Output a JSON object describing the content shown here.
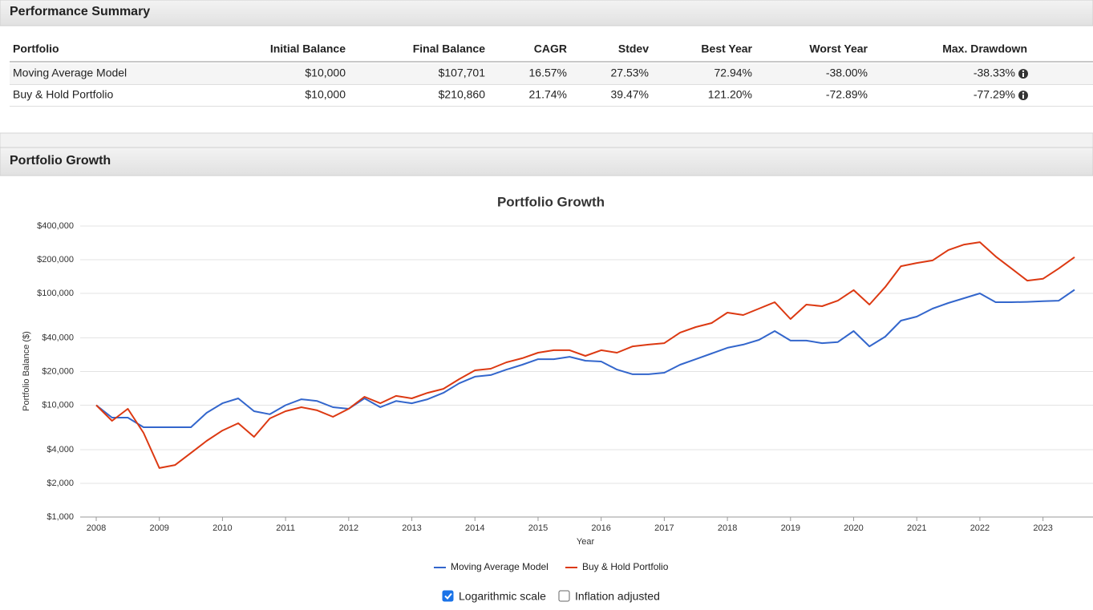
{
  "sections": {
    "summary": "Performance Summary",
    "growth": "Portfolio Growth"
  },
  "table": {
    "columns": [
      "Portfolio",
      "Initial Balance",
      "Final Balance",
      "CAGR",
      "Stdev",
      "Best Year",
      "Worst Year",
      "Max. Drawdown"
    ],
    "rows": [
      [
        "Moving Average Model",
        "$10,000",
        "$107,701",
        "16.57%",
        "27.53%",
        "72.94%",
        "-38.00%",
        "-38.33%"
      ],
      [
        "Buy & Hold Portfolio",
        "$10,000",
        "$210,860",
        "21.74%",
        "39.47%",
        "121.20%",
        "-72.89%",
        "-77.29%"
      ]
    ]
  },
  "chart_data": {
    "type": "line",
    "title": "Portfolio Growth",
    "x_label": "Year",
    "y_label": "Portfolio Balance ($)",
    "log_y": true,
    "grid": true,
    "legend": "bottom",
    "xlim": [
      2008,
      2023.5
    ],
    "xticks": [
      2008,
      2009,
      2010,
      2011,
      2012,
      2013,
      2014,
      2015,
      2016,
      2017,
      2018,
      2019,
      2020,
      2021,
      2022,
      2023
    ],
    "ylim": [
      1000,
      400000
    ],
    "yticks": [
      {
        "value": 1000,
        "label": "$1,000"
      },
      {
        "value": 2000,
        "label": "$2,000"
      },
      {
        "value": 4000,
        "label": "$4,000"
      },
      {
        "value": 10000,
        "label": "$10,000"
      },
      {
        "value": 20000,
        "label": "$20,000"
      },
      {
        "value": 40000,
        "label": "$40,000"
      },
      {
        "value": 100000,
        "label": "$100,000"
      },
      {
        "value": 200000,
        "label": "$200,000"
      },
      {
        "value": 400000,
        "label": "$400,000"
      }
    ],
    "x": [
      2008,
      2008.25,
      2008.5,
      2008.75,
      2009,
      2009.25,
      2009.5,
      2009.75,
      2010,
      2010.25,
      2010.5,
      2010.75,
      2011,
      2011.25,
      2011.5,
      2011.75,
      2012,
      2012.25,
      2012.5,
      2012.75,
      2013,
      2013.25,
      2013.5,
      2013.75,
      2014,
      2014.25,
      2014.5,
      2014.75,
      2015,
      2015.25,
      2015.5,
      2015.75,
      2016,
      2016.25,
      2016.5,
      2016.75,
      2017,
      2017.25,
      2017.5,
      2017.75,
      2018,
      2018.25,
      2018.5,
      2018.75,
      2019,
      2019.25,
      2019.5,
      2019.75,
      2020,
      2020.25,
      2020.5,
      2020.75,
      2021,
      2021.25,
      2021.5,
      2021.75,
      2022,
      2022.25,
      2022.5,
      2022.75,
      2023,
      2023.25,
      2023.5
    ],
    "series": [
      {
        "name": "Moving Average Model",
        "color": "#3366cc",
        "values": [
          10000,
          7740,
          7740,
          6350,
          6350,
          6350,
          6350,
          8550,
          10400,
          11500,
          8830,
          8300,
          10000,
          11300,
          10900,
          9600,
          9290,
          11500,
          9600,
          10900,
          10400,
          11300,
          12900,
          15700,
          18000,
          18600,
          20800,
          23000,
          25800,
          25800,
          27100,
          25000,
          24600,
          20800,
          18900,
          18900,
          19500,
          23000,
          25800,
          29000,
          32600,
          34800,
          38400,
          46000,
          37800,
          37800,
          35900,
          36700,
          46000,
          33600,
          41000,
          57000,
          62000,
          73100,
          82000,
          90600,
          100000,
          83400,
          83400,
          84000,
          85000,
          86000,
          107701
        ]
      },
      {
        "name": "Buy & Hold Portfolio",
        "color": "#dc3912",
        "values": [
          10000,
          7250,
          9290,
          5660,
          2740,
          2920,
          3740,
          4800,
          5940,
          6900,
          5210,
          7620,
          8830,
          9600,
          9000,
          7870,
          9290,
          11900,
          10400,
          12100,
          11500,
          12900,
          14000,
          17100,
          20500,
          21200,
          24200,
          26300,
          29500,
          31000,
          31000,
          27600,
          31000,
          29500,
          33600,
          34800,
          35900,
          44600,
          50000,
          54300,
          67300,
          64000,
          73100,
          83400,
          59000,
          79400,
          76800,
          86100,
          106900,
          79400,
          114000,
          175000,
          187000,
          197000,
          244000,
          273000,
          287000,
          214000,
          167000,
          130000,
          135000,
          167000,
          210860
        ]
      }
    ]
  },
  "controls": [
    {
      "label": "Logarithmic scale",
      "checked": true
    },
    {
      "label": "Inflation adjusted",
      "checked": false
    }
  ]
}
